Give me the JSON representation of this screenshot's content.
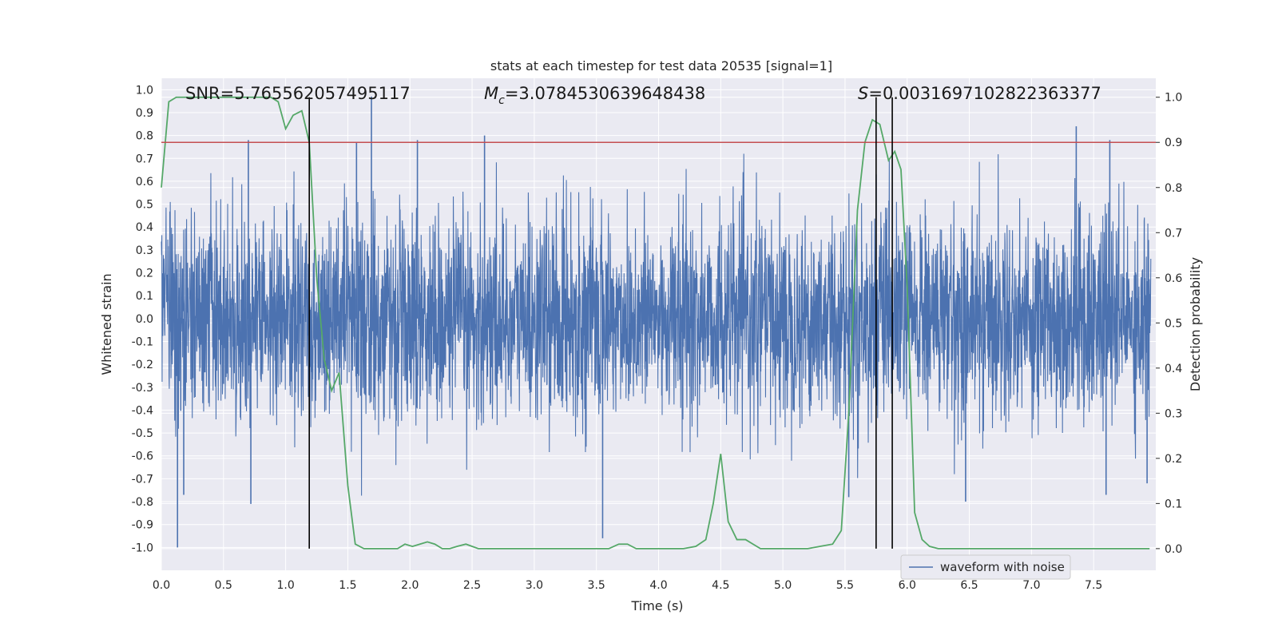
{
  "chart_data": {
    "type": "line",
    "title": "stats at each timestep for test data 20535 [signal=1]",
    "xlabel": "Time (s)",
    "ylabel_left": "Whitened strain",
    "ylabel_right": "Detection probability",
    "xlim": [
      0.0,
      8.0
    ],
    "ylim_left": [
      -1.1,
      1.05
    ],
    "ylim_right": [
      -0.048,
      1.042
    ],
    "xticks": [
      "0.0",
      "0.5",
      "1.0",
      "1.5",
      "2.0",
      "2.5",
      "3.0",
      "3.5",
      "4.0",
      "4.5",
      "5.0",
      "5.5",
      "6.0",
      "6.5",
      "7.0",
      "7.5"
    ],
    "yticks_left": [
      "1.0",
      "0.9",
      "0.8",
      "0.7",
      "0.6",
      "0.5",
      "0.4",
      "0.3",
      "0.2",
      "0.1",
      "0.0",
      "-0.1",
      "-0.2",
      "-0.3",
      "-0.4",
      "-0.5",
      "-0.6",
      "-0.7",
      "-0.8",
      "-0.9",
      "-1.0"
    ],
    "yticks_right": [
      "1.0",
      "0.9",
      "0.8",
      "0.7",
      "0.6",
      "0.5",
      "0.4",
      "0.3",
      "0.2",
      "0.1",
      "0.0"
    ],
    "grid": true,
    "annotations": {
      "snr": "SNR=5.765562057495117",
      "mc_symbol": "M",
      "mc_sub": "c",
      "mc_value": "=3.0784530639648438",
      "s_symbol": "S",
      "s_value": "=0.0031697102822363377"
    },
    "legend": {
      "label": "waveform with noise",
      "loc": "lower right"
    },
    "threshold": 0.9,
    "vlines": [
      1.19,
      5.75,
      5.88
    ],
    "waveform_envelope": {
      "typical_amplitude": 0.4,
      "peaks": [
        {
          "x": 0.13,
          "y": -1.0
        },
        {
          "x": 0.18,
          "y": -0.77
        },
        {
          "x": 0.7,
          "y": 0.78
        },
        {
          "x": 0.72,
          "y": -0.81
        },
        {
          "x": 1.69,
          "y": 0.97
        },
        {
          "x": 1.57,
          "y": 0.77
        },
        {
          "x": 2.06,
          "y": 0.78
        },
        {
          "x": 2.6,
          "y": 0.8
        },
        {
          "x": 3.55,
          "y": -0.96
        },
        {
          "x": 5.53,
          "y": -0.78
        },
        {
          "x": 5.75,
          "y": 0.63
        },
        {
          "x": 6.47,
          "y": -0.8
        },
        {
          "x": 7.36,
          "y": 0.84
        },
        {
          "x": 7.63,
          "y": 0.78
        },
        {
          "x": 7.6,
          "y": -0.77
        },
        {
          "x": 7.93,
          "y": -0.72
        }
      ]
    },
    "series": [
      {
        "name": "Detection probability",
        "color": "#55a868",
        "x": [
          0.0,
          0.06,
          0.12,
          0.18,
          0.3,
          0.5,
          0.65,
          0.8,
          0.88,
          0.94,
          1.0,
          1.06,
          1.13,
          1.19,
          1.25,
          1.31,
          1.37,
          1.43,
          1.5,
          1.56,
          1.63,
          1.7,
          1.8,
          1.9,
          1.96,
          2.02,
          2.08,
          2.14,
          2.2,
          2.26,
          2.32,
          2.38,
          2.45,
          2.55,
          2.65,
          2.8,
          3.0,
          3.2,
          3.4,
          3.6,
          3.68,
          3.75,
          3.82,
          3.9,
          4.0,
          4.2,
          4.3,
          4.38,
          4.44,
          4.5,
          4.56,
          4.63,
          4.7,
          4.76,
          4.82,
          4.88,
          4.94,
          5.0,
          5.2,
          5.3,
          5.4,
          5.47,
          5.53,
          5.6,
          5.66,
          5.72,
          5.78,
          5.85,
          5.9,
          5.95,
          6.0,
          6.06,
          6.12,
          6.18,
          6.25,
          6.31,
          6.37,
          6.45,
          6.6,
          6.8,
          7.0,
          7.2,
          7.4,
          7.6,
          7.7,
          7.8,
          7.95
        ],
        "values": [
          0.8,
          0.99,
          1.0,
          1.0,
          1.0,
          1.0,
          1.0,
          1.0,
          1.0,
          0.99,
          0.93,
          0.96,
          0.97,
          0.9,
          0.6,
          0.42,
          0.35,
          0.39,
          0.14,
          0.01,
          0.0,
          0.0,
          0.0,
          0.0,
          0.01,
          0.005,
          0.01,
          0.015,
          0.01,
          0.0,
          0.0,
          0.005,
          0.01,
          0.0,
          0.0,
          0.0,
          0.0,
          0.0,
          0.0,
          0.0,
          0.01,
          0.01,
          0.0,
          0.0,
          0.0,
          0.0,
          0.005,
          0.02,
          0.1,
          0.21,
          0.06,
          0.02,
          0.02,
          0.01,
          0.0,
          0.0,
          0.0,
          0.0,
          0.0,
          0.005,
          0.01,
          0.04,
          0.3,
          0.75,
          0.9,
          0.95,
          0.94,
          0.86,
          0.88,
          0.84,
          0.58,
          0.08,
          0.02,
          0.005,
          0.0,
          0.0,
          0.0,
          0.0,
          0.0,
          0.0,
          0.0,
          0.0,
          0.0,
          0.0,
          0.0,
          0.0,
          0.0
        ]
      }
    ]
  },
  "colors": {
    "axes_bg": "#eaeaf2",
    "grid": "#ffffff",
    "waveform": "#4c72b0",
    "probability": "#55a868",
    "threshold": "#c44e52",
    "vline": "#000000"
  }
}
